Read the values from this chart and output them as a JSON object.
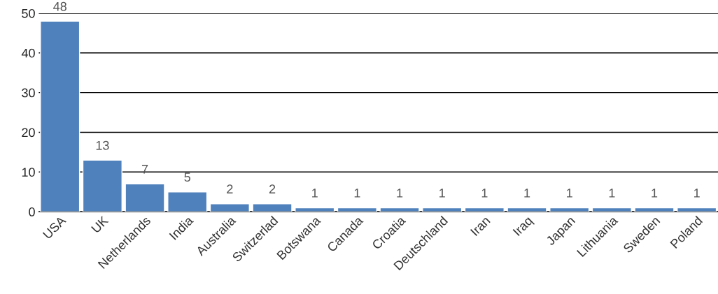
{
  "chart_data": {
    "type": "bar",
    "categories": [
      "USA",
      "UK",
      "Netherlands",
      "India",
      "Australia",
      "Switzerlad",
      "Botswana",
      "Canada",
      "Croatia",
      "Deutschland",
      "Iran",
      "Iraq",
      "Japan",
      "Lithuania",
      "Sweden",
      "Poland"
    ],
    "values": [
      48,
      13,
      7,
      5,
      2,
      2,
      1,
      1,
      1,
      1,
      1,
      1,
      1,
      1,
      1,
      1
    ],
    "color": "#4f81bd",
    "ylim": [
      0,
      50
    ],
    "yticks": [
      0,
      10,
      20,
      30,
      40,
      50
    ],
    "grid": "y",
    "data_labels": true
  }
}
